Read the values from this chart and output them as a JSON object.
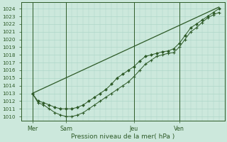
{
  "xlabel": "Pression niveau de la mer( hPa )",
  "ylim": [
    1009.5,
    1024.8
  ],
  "yticks": [
    1010,
    1011,
    1012,
    1013,
    1014,
    1015,
    1016,
    1017,
    1018,
    1019,
    1020,
    1021,
    1022,
    1023,
    1024
  ],
  "xtick_labels": [
    "Mer",
    "Sam",
    "Jeu",
    "Ven"
  ],
  "xtick_positions": [
    6,
    24,
    60,
    84
  ],
  "xlim": [
    0,
    108
  ],
  "background_color": "#cce8dc",
  "grid_color": "#a8d4c4",
  "line_color": "#2d5a27",
  "vline_positions": [
    6,
    24,
    60,
    84
  ],
  "series1_x": [
    6,
    9,
    12,
    15,
    18,
    21,
    24,
    27,
    30,
    33,
    36,
    39,
    42,
    45,
    48,
    51,
    54,
    57,
    60,
    63,
    66,
    69,
    72,
    75,
    78,
    81,
    84,
    87,
    90,
    93,
    96,
    99,
    102,
    105
  ],
  "series1_y": [
    1013.0,
    1011.8,
    1011.5,
    1011.0,
    1010.5,
    1010.2,
    1010.0,
    1010.0,
    1010.2,
    1010.5,
    1011.0,
    1011.5,
    1012.0,
    1012.5,
    1013.0,
    1013.5,
    1014.0,
    1014.5,
    1015.2,
    1016.0,
    1016.8,
    1017.3,
    1017.8,
    1018.0,
    1018.2,
    1018.3,
    1019.0,
    1020.0,
    1021.0,
    1021.5,
    1022.2,
    1022.8,
    1023.2,
    1023.5
  ],
  "series2_x": [
    6,
    9,
    12,
    15,
    18,
    21,
    24,
    27,
    30,
    33,
    36,
    39,
    42,
    45,
    48,
    51,
    54,
    57,
    60,
    63,
    66,
    69,
    72,
    75,
    78,
    81,
    84,
    87,
    90,
    93,
    96,
    99,
    102,
    105
  ],
  "series2_y": [
    1013.0,
    1012.0,
    1011.8,
    1011.5,
    1011.2,
    1011.0,
    1011.0,
    1011.0,
    1011.2,
    1011.5,
    1012.0,
    1012.5,
    1013.0,
    1013.5,
    1014.2,
    1015.0,
    1015.5,
    1016.0,
    1016.5,
    1017.2,
    1017.8,
    1018.0,
    1018.2,
    1018.4,
    1018.5,
    1018.8,
    1019.5,
    1020.5,
    1021.5,
    1022.0,
    1022.5,
    1023.0,
    1023.5,
    1024.0
  ],
  "trend_x": [
    6,
    105
  ],
  "trend_y": [
    1013.0,
    1024.2
  ]
}
